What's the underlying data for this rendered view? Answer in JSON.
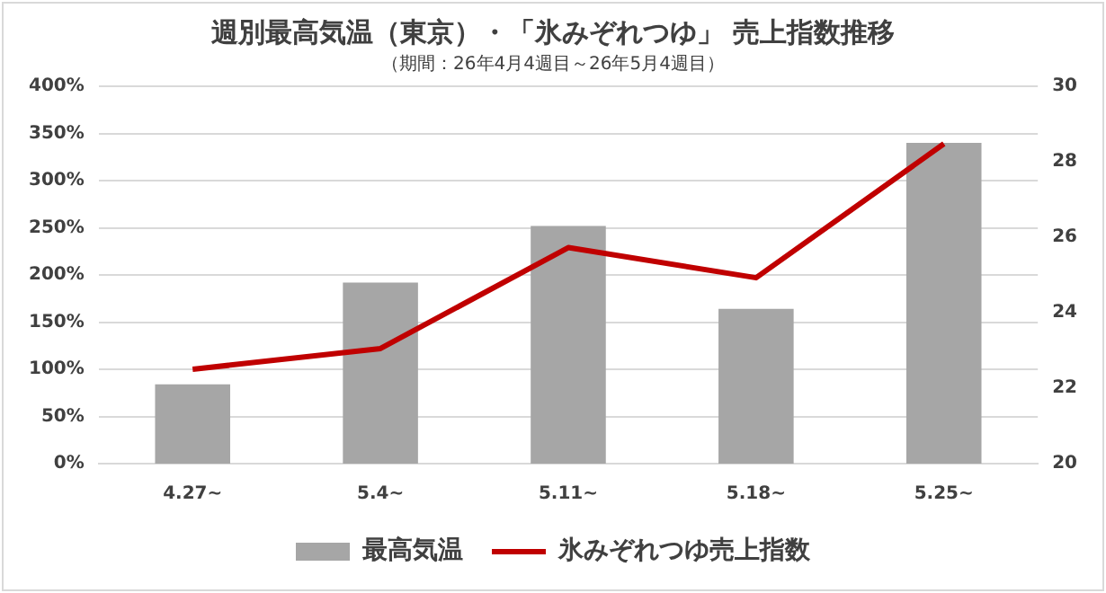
{
  "chart_data": {
    "type": "bar",
    "title": "週別最高気温（東京）・「氷みぞれつゆ」 売上指数推移",
    "subtitle": "（期間：26年4月4週目～26年5月4週目）",
    "categories": [
      "4.27~",
      "5.4~",
      "5.11~",
      "5.18~",
      "5.25~"
    ],
    "series": [
      {
        "name": "最高気温",
        "axis": "y2",
        "color": "#a6a6a6",
        "values": [
          22.1,
          24.8,
          26.3,
          24.1,
          28.5
        ]
      },
      {
        "name": "氷みぞれつゆ売上指数",
        "type": "line",
        "axis": "y",
        "color": "#c00000",
        "values": [
          100,
          122,
          229,
          197,
          339
        ]
      }
    ],
    "ylim": [
      0,
      400
    ],
    "yticks": [
      {
        "value": 0,
        "label": "0%"
      },
      {
        "value": 50,
        "label": "50%"
      },
      {
        "value": 100,
        "label": "100%"
      },
      {
        "value": 150,
        "label": "150%"
      },
      {
        "value": 200,
        "label": "200%"
      },
      {
        "value": 250,
        "label": "250%"
      },
      {
        "value": 300,
        "label": "300%"
      },
      {
        "value": 350,
        "label": "350%"
      },
      {
        "value": 400,
        "label": "400%"
      }
    ],
    "y2lim": [
      20,
      30
    ],
    "y2ticks": [
      20,
      22,
      24,
      26,
      28,
      30
    ],
    "grid": "y",
    "legend": "bottom",
    "marker": "none",
    "line_style": "solid"
  }
}
